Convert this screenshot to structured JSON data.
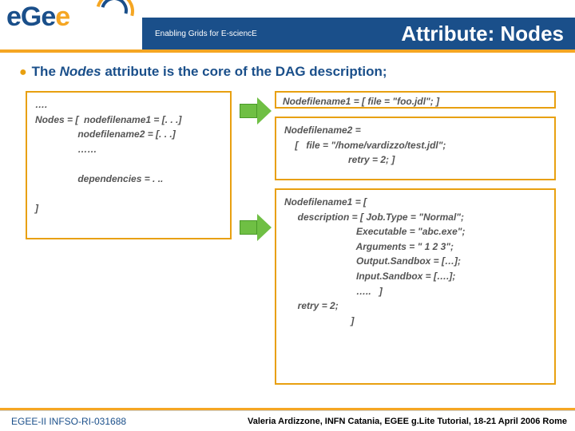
{
  "colors": {
    "brand_blue": "#1a4f8a",
    "brand_orange": "#f5a623",
    "arrow_green": "#6fbf44",
    "box_border": "#e8a010",
    "code_text": "#545454",
    "white": "#ffffff"
  },
  "header": {
    "logo_text": "eGee",
    "tagline": "Enabling Grids for E-sciencE",
    "title": "Attribute: Nodes"
  },
  "bullet": {
    "text_html": "The Nodes attribute is the core of the DAG description;"
  },
  "boxes": {
    "left": "….\nNodes = [  nodefilename1 = [. . .]\n                nodefilename2 = [. . .]\n                ……\n\n                dependencies = . ..\n\n]",
    "b1": "Nodefilename1 = [ file = \"foo.jdl\"; ]",
    "b2": "Nodefilename2 =\n    [   file = \"/home/vardizzo/test.jdl\";\n                        retry = 2; ]",
    "b3": "Nodefilename1 = [\n     description = [ Job.Type = \"Normal\";\n                           Executable = \"abc.exe\";\n                           Arguments = \" 1 2 3\";\n                           Output.Sandbox = […];\n                           Input.Sandbox = [….];\n                           …..   ]\n     retry = 2;\n                         ]"
  },
  "footer": {
    "left": "EGEE-II INFSO-RI-031688",
    "right": "Valeria Ardizzone, INFN Catania, EGEE g.Lite Tutorial, 18-21 April 2006 Rome"
  }
}
